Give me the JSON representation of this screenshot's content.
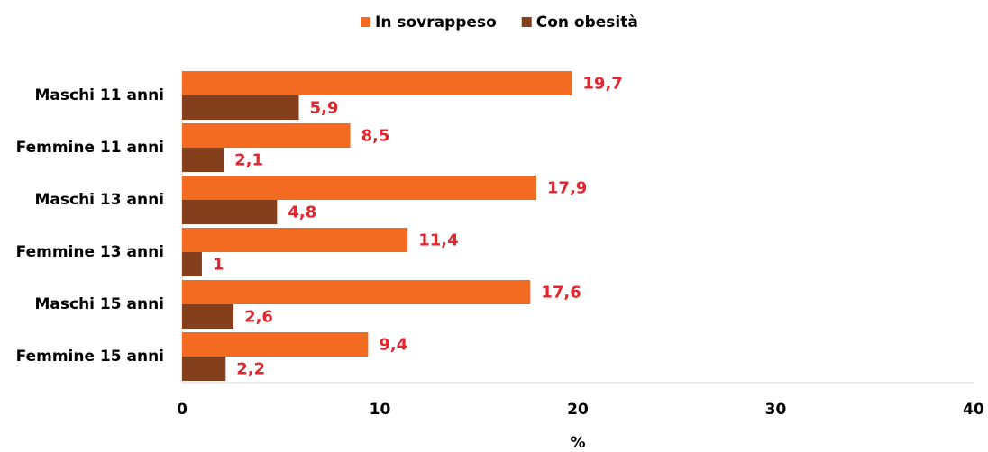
{
  "chart_data": {
    "type": "hbar",
    "categories": [
      "Maschi 11 anni",
      "Femmine 11 anni",
      "Maschi 13 anni",
      "Femmine 13 anni",
      "Maschi 15 anni",
      "Femmine 15 anni"
    ],
    "series": [
      {
        "name": "In sovrappeso",
        "color": "#f26b21",
        "values": [
          19.7,
          8.5,
          17.9,
          11.4,
          17.6,
          9.4
        ],
        "value_labels": [
          "19,7",
          "8,5",
          "17,9",
          "11,4",
          "17,6",
          "9,4"
        ]
      },
      {
        "name": "Con obesità",
        "color": "#843f1c",
        "values": [
          5.9,
          2.1,
          4.8,
          1,
          2.6,
          2.2
        ],
        "value_labels": [
          "5,9",
          "2,1",
          "4,8",
          "1",
          "2,6",
          "2,2"
        ]
      }
    ],
    "xlabel": "%",
    "xlim": [
      0,
      40
    ],
    "xticks": [
      0,
      10,
      20,
      30,
      40
    ],
    "legend": "top"
  }
}
